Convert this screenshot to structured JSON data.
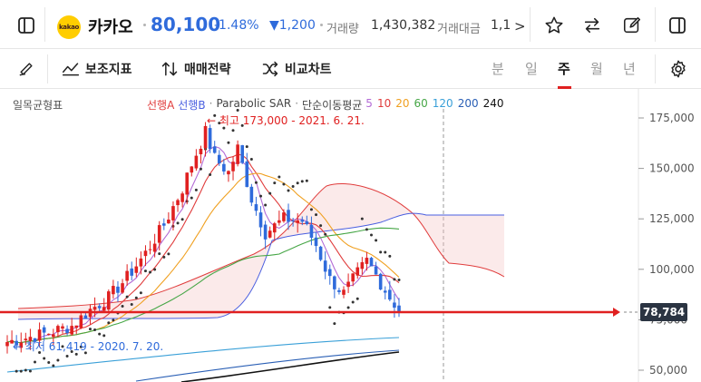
{
  "header": {
    "stock_name": "카카오",
    "logo_text": "kakao",
    "price": "80,100",
    "change_pct": "-1.48%",
    "change_amount": "▼1,200",
    "volume_label": "거래량",
    "volume_value": "1,430,382",
    "amount_label": "거래대금",
    "amount_value": "1,1",
    "more_arrow": ">"
  },
  "toolbar": {
    "indicator_label": "보조지표",
    "trade_strategy_label": "매매전략",
    "compare_label": "비교차트",
    "periods": [
      "분",
      "일",
      "주",
      "월",
      "년"
    ],
    "active_period": "주"
  },
  "legend": {
    "title": "일목균형표",
    "ichimoku_a": "선행A",
    "ichimoku_b": "선행B",
    "parabolic": "Parabolic SAR",
    "ma_label": "단순이동평균",
    "ma_periods": [
      {
        "label": "5",
        "color": "#b36bd6"
      },
      {
        "label": "10",
        "color": "#e03c3c"
      },
      {
        "label": "20",
        "color": "#f0a020"
      },
      {
        "label": "60",
        "color": "#46a646"
      },
      {
        "label": "120",
        "color": "#3aa0d8"
      },
      {
        "label": "200",
        "color": "#2a5fb5"
      },
      {
        "label": "240",
        "color": "#111111"
      }
    ]
  },
  "annotations": {
    "high": "← 최고 173,000 - 2021. 6. 21.",
    "low": "← 최저 61,419 - 2020. 7. 20."
  },
  "chart_data": {
    "type": "candlestick",
    "y_ticks": [
      "175,000",
      "150,000",
      "125,000",
      "100,000",
      "75,000",
      "50,000"
    ],
    "y_tick_values": [
      175000,
      150000,
      125000,
      100000,
      75000,
      50000
    ],
    "current_price_label": "78,784",
    "current_price": 78784,
    "high": 173000,
    "low": 61419,
    "colors": {
      "up": "#e02020",
      "down": "#2f6bdb",
      "cloud_a": "#e03c3c",
      "cloud_b": "#4a5fe0"
    }
  }
}
